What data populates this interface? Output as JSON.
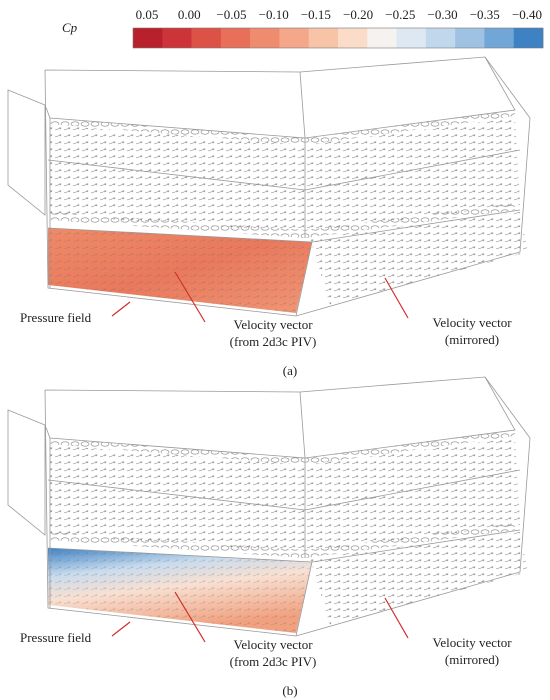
{
  "colorbar": {
    "symbol": "Cp",
    "ticks": [
      "0.05",
      "0.00",
      "−0.05",
      "−0.10",
      "−0.15",
      "−0.20",
      "−0.25",
      "−0.30",
      "−0.35",
      "−0.40"
    ],
    "colors": [
      "#b8202c",
      "#cc3439",
      "#dc5247",
      "#e8705a",
      "#ef8c70",
      "#f4a889",
      "#f8c4a8",
      "#fadcc9",
      "#f5f2f0",
      "#dde8f3",
      "#c1d7ec",
      "#9fc2e3",
      "#72a6d6",
      "#3f82c4"
    ]
  },
  "panels": [
    {
      "label": "(a)",
      "pressure_field": "Pressure field",
      "velocity_piv": [
        "Velocity vector",
        "(from 2d3c PIV)"
      ],
      "velocity_mirrored": [
        "Velocity vector",
        "(mirrored)"
      ]
    },
    {
      "label": "(b)",
      "pressure_field": "Pressure field",
      "velocity_piv": [
        "Velocity vector",
        "(from 2d3c PIV)"
      ],
      "velocity_mirrored": [
        "Velocity vector",
        "(mirrored)"
      ]
    }
  ]
}
